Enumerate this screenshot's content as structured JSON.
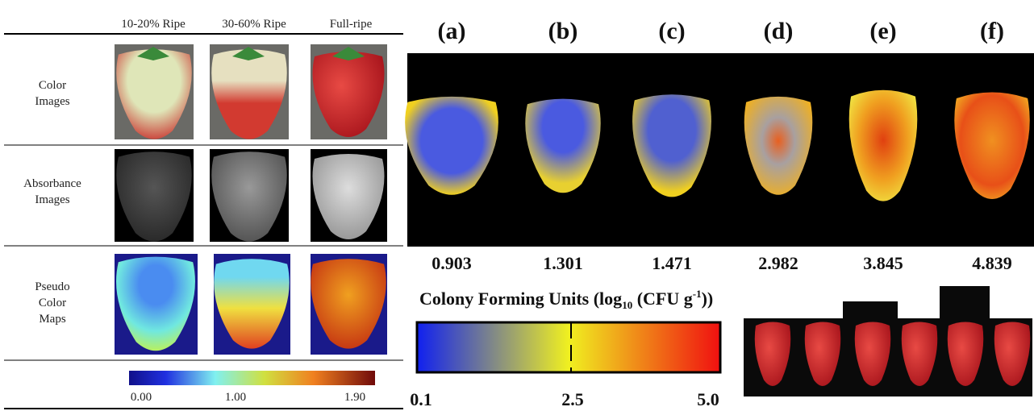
{
  "left_panel": {
    "columns": [
      "10-20% Ripe",
      "30-60% Ripe",
      "Full-ripe"
    ],
    "rows": [
      [
        "Color",
        "Images"
      ],
      [
        "Absorbance",
        "Images"
      ],
      [
        "Pseudo",
        "Color",
        "Maps"
      ]
    ],
    "colorbar_labels": [
      "0.00",
      "1.00",
      "1.90"
    ]
  },
  "right_panel": {
    "panels": [
      "(a)",
      "(b)",
      "(c)",
      "(d)",
      "(e)",
      "(f)"
    ],
    "values": [
      "0.903",
      "1.301",
      "1.471",
      "2.982",
      "3.845",
      "4.839"
    ],
    "colorbar_title": [
      "Colony Forming Units (log",
      "10",
      " (CFU g",
      "-1",
      "))"
    ],
    "colorbar_labels": [
      "0.1",
      "2.5",
      "5.0"
    ]
  }
}
